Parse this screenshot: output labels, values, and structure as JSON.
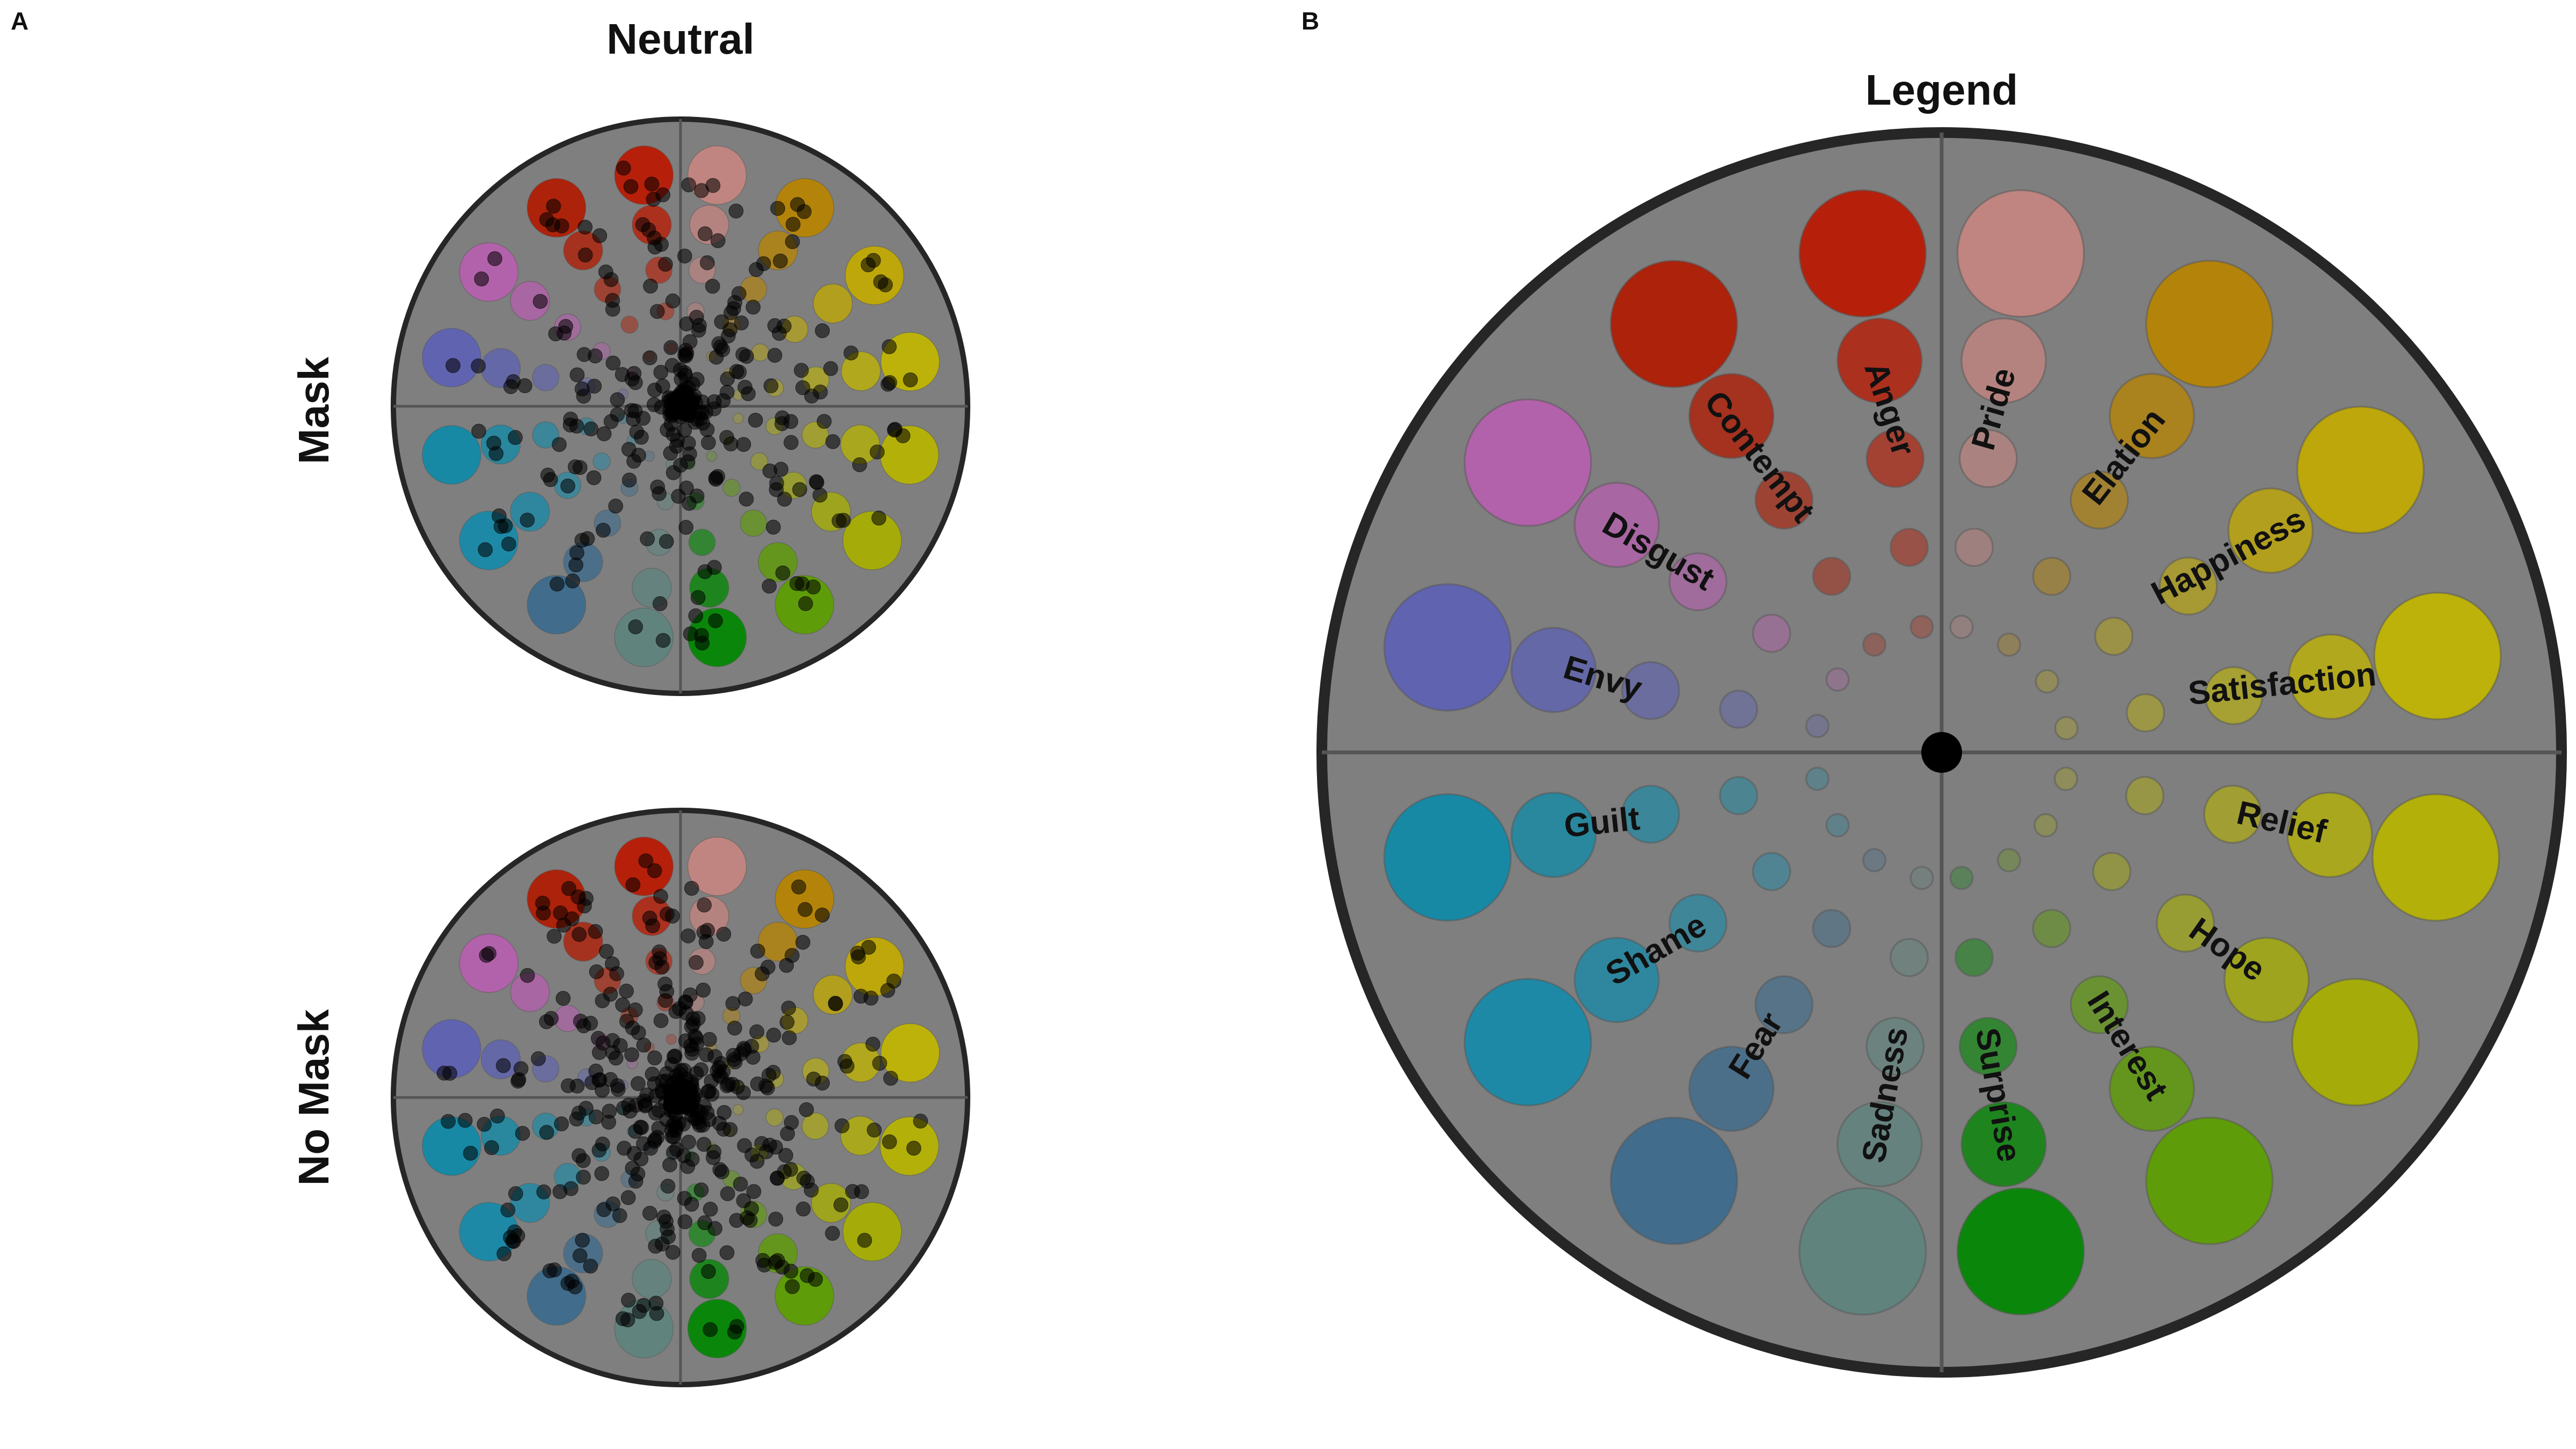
{
  "panel_a": {
    "letter": "A",
    "column_title": "Neutral",
    "rows": [
      {
        "label": "Mask",
        "point_count": 300
      },
      {
        "label": "No Mask",
        "point_count": 420
      }
    ]
  },
  "panel_b": {
    "letter": "B",
    "title": "Legend"
  },
  "emotions": [
    {
      "name": "Pride",
      "angle": 81,
      "color": "#c68580",
      "label_rotate": -74
    },
    {
      "name": "Elation",
      "angle": 58,
      "color": "#b88400",
      "label_rotate": -52
    },
    {
      "name": "Happiness",
      "angle": 34,
      "color": "#c2aa00",
      "label_rotate": -28
    },
    {
      "name": "Satisfaction",
      "angle": 11,
      "color": "#c2b600",
      "label_rotate": -6
    },
    {
      "name": "Relief",
      "angle": -12,
      "color": "#b7b400",
      "label_rotate": 13
    },
    {
      "name": "Hope",
      "angle": -35,
      "color": "#a8b000",
      "label_rotate": 35
    },
    {
      "name": "Interest",
      "angle": -58,
      "color": "#5c9e00",
      "label_rotate": 58
    },
    {
      "name": "Surprise",
      "angle": -81,
      "color": "#008800",
      "label_rotate": 80
    },
    {
      "name": "Sadness",
      "angle": -99,
      "color": "#5e837e",
      "label_rotate": -80
    },
    {
      "name": "Fear",
      "angle": -122,
      "color": "#3c6a8c",
      "label_rotate": -58
    },
    {
      "name": "Shame",
      "angle": -145,
      "color": "#168aaa",
      "label_rotate": -30
    },
    {
      "name": "Guilt",
      "angle": -168,
      "color": "#0e8aa8",
      "label_rotate": -6
    },
    {
      "name": "Envy",
      "angle": 168,
      "color": "#5d61b3",
      "label_rotate": 17
    },
    {
      "name": "Disgust",
      "angle": 145,
      "color": "#b65fae",
      "label_rotate": 30
    },
    {
      "name": "Contempt",
      "angle": 122,
      "color": "#b01a00",
      "label_rotate": 52
    },
    {
      "name": "Anger",
      "angle": 99,
      "color": "#bb1800",
      "label_rotate": 72
    }
  ],
  "colors": {
    "wheel_bg": "#7f7f7f",
    "rim": "#262626",
    "grid": "#555555",
    "point": "#000000",
    "text": "#111111"
  }
}
